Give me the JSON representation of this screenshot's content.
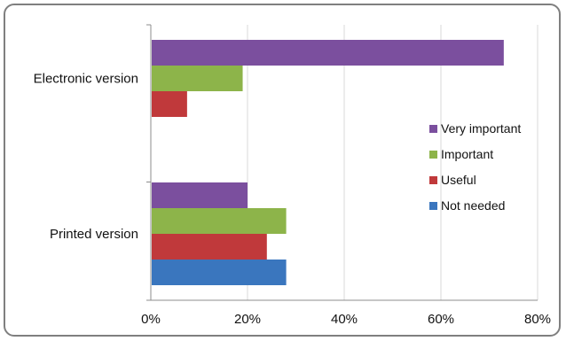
{
  "chart_data": {
    "type": "bar",
    "orientation": "horizontal",
    "categories": [
      "Electronic version",
      "Printed version"
    ],
    "series": [
      {
        "name": "Very important",
        "color": "#7B4F9E",
        "values": [
          73,
          20
        ]
      },
      {
        "name": "Important",
        "color": "#8DB44A",
        "values": [
          19,
          28
        ]
      },
      {
        "name": "Useful",
        "color": "#C0393B",
        "values": [
          7.5,
          24
        ]
      },
      {
        "name": "Not needed",
        "color": "#3A76BE",
        "values": [
          null,
          28
        ]
      }
    ],
    "xlim": [
      0,
      80
    ],
    "x_ticks": [
      "0%",
      "20%",
      "40%",
      "60%",
      "80%"
    ],
    "grid": "vertical",
    "legend_position": "right",
    "title": "",
    "xlabel": "",
    "ylabel": ""
  }
}
